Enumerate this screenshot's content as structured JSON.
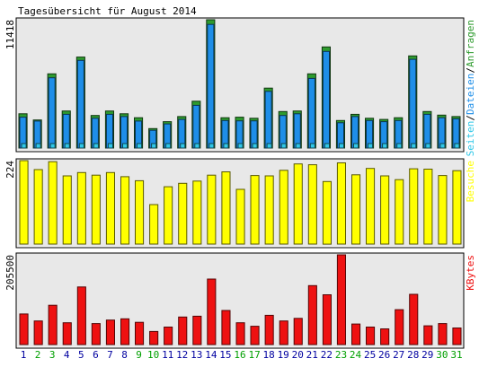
{
  "chart_data": {
    "type": "bar",
    "title": "Tagesübersicht für August 2014",
    "categories": [
      "1",
      "2",
      "3",
      "4",
      "5",
      "6",
      "7",
      "8",
      "9",
      "10",
      "11",
      "12",
      "13",
      "14",
      "15",
      "16",
      "17",
      "18",
      "19",
      "20",
      "21",
      "22",
      "23",
      "24",
      "25",
      "26",
      "27",
      "28",
      "29",
      "30",
      "31"
    ],
    "weekend_days": [
      "2",
      "3",
      "9",
      "10",
      "16",
      "17",
      "23",
      "24",
      "30",
      "31"
    ],
    "colors": {
      "background": "#ffffff",
      "plot_background": "#e8e8e8",
      "anfragen": "#2e9b2e",
      "dateien": "#1e8ee8",
      "seiten": "#30c8e8",
      "besuche": "#ffff00",
      "kbytes": "#ee1111",
      "weekday_label": "#0000a0",
      "weekend_label": "#00a000"
    },
    "panels": [
      {
        "legend": [
          "Seiten",
          "Dateien",
          "Anfragen"
        ],
        "ymax_label": "11418",
        "ymax": 11418,
        "series": [
          {
            "name": "Anfragen",
            "values": [
              3049,
              2500,
              6600,
              3300,
              8100,
              2900,
              3300,
              3050,
              2700,
              1730,
              2350,
              2800,
              4170,
              11418,
              2700,
              2750,
              2650,
              5330,
              3250,
              3300,
              6600,
              9000,
              2450,
              3000,
              2650,
              2550,
              2700,
              8200,
              3250,
              2930,
              2800
            ]
          },
          {
            "name": "Dateien",
            "values": [
              2750,
              2400,
              6250,
              3000,
              7800,
              2650,
              3000,
              2800,
              2400,
              1580,
              2150,
              2550,
              3800,
              11000,
              2450,
              2420,
              2420,
              5050,
              2900,
              3050,
              6200,
              8600,
              2250,
              2800,
              2450,
              2350,
              2450,
              7900,
              3000,
              2700,
              2600
            ]
          },
          {
            "name": "Seiten",
            "values": [
              400,
              400,
              400,
              400,
              400,
              400,
              400,
              400,
              400,
              400,
              400,
              400,
              400,
              400,
              400,
              400,
              400,
              400,
              400,
              400,
              400,
              400,
              400,
              400,
              400,
              400,
              400,
              400,
              400,
              400,
              400
            ]
          }
        ]
      },
      {
        "legend": [
          "Besuche"
        ],
        "ymax_label": "224",
        "ymax": 224,
        "series": [
          {
            "name": "Besuche",
            "values": [
              224,
              200,
              221,
              183,
              192,
              185,
              192,
              181,
              170,
              106,
              154,
              163,
              169,
              185,
              194,
              147,
              184,
              183,
              198,
              215,
              213,
              168,
              218,
              186,
              203,
              183,
              173,
              202,
              201,
              184,
              197
            ]
          }
        ]
      },
      {
        "legend": [
          "KBytes"
        ],
        "ymax_label": "205500",
        "ymax": 205500,
        "series": [
          {
            "name": "KBytes",
            "values": [
              70000,
              54000,
              90000,
              50000,
              132000,
              48000,
              56000,
              59000,
              51000,
              30000,
              40000,
              63000,
              65000,
              150000,
              78000,
              50000,
              42000,
              67000,
              54000,
              60000,
              135000,
              114000,
              205500,
              47000,
              40000,
              36000,
              80000,
              115000,
              43000,
              48000,
              38000
            ]
          }
        ]
      }
    ]
  }
}
